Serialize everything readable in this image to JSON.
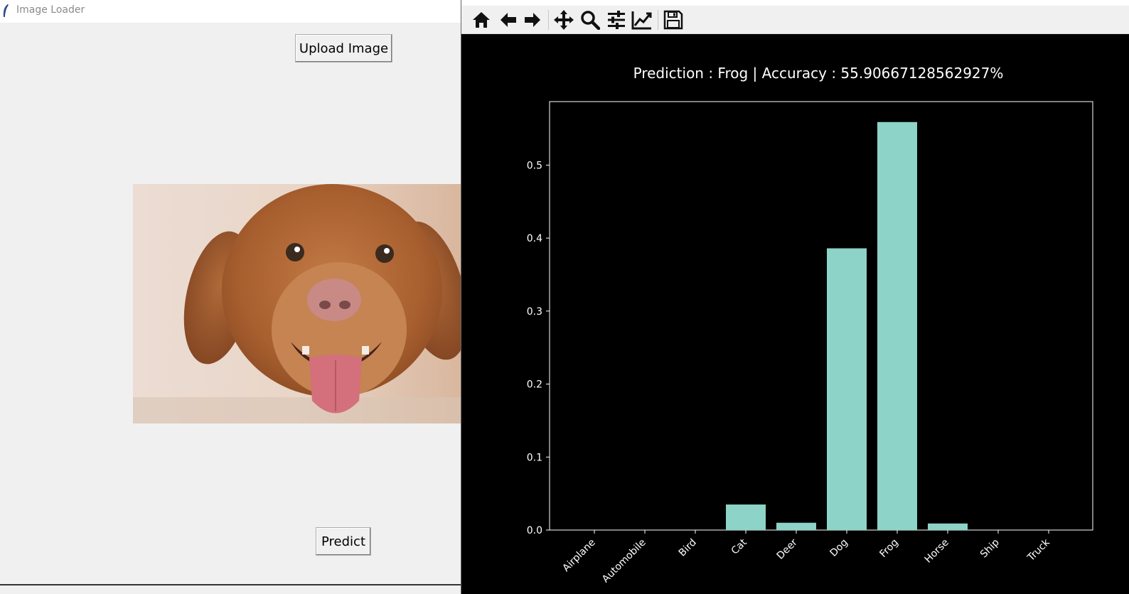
{
  "window": {
    "title": "Image Loader"
  },
  "buttons": {
    "upload_label": "Upload Image",
    "predict_label": "Predict"
  },
  "toolbar": {
    "icons": [
      "home-icon",
      "back-icon",
      "forward-icon",
      "pan-icon",
      "zoom-icon",
      "configure-subplots-icon",
      "edit-axis-icon",
      "save-icon"
    ]
  },
  "colors": {
    "bar": "#8dd3c7",
    "figure_bg": "#000000",
    "text": "#ffffff"
  },
  "chart_data": {
    "type": "bar",
    "title": "Prediction : Frog | Accuracy : 55.90667128562927%",
    "categories": [
      "Airplane",
      "Automobile",
      "Bird",
      "Cat",
      "Deer",
      "Dog",
      "Frog",
      "Horse",
      "Ship",
      "Truck"
    ],
    "values": [
      0.0,
      0.0,
      0.0,
      0.035,
      0.01,
      0.386,
      0.559,
      0.009,
      0.0,
      0.0
    ],
    "yticks": [
      "0.0",
      "0.1",
      "0.2",
      "0.3",
      "0.4",
      "0.5"
    ],
    "ylim": [
      0,
      0.587
    ],
    "xlabel": "",
    "ylabel": "",
    "grid": false
  }
}
